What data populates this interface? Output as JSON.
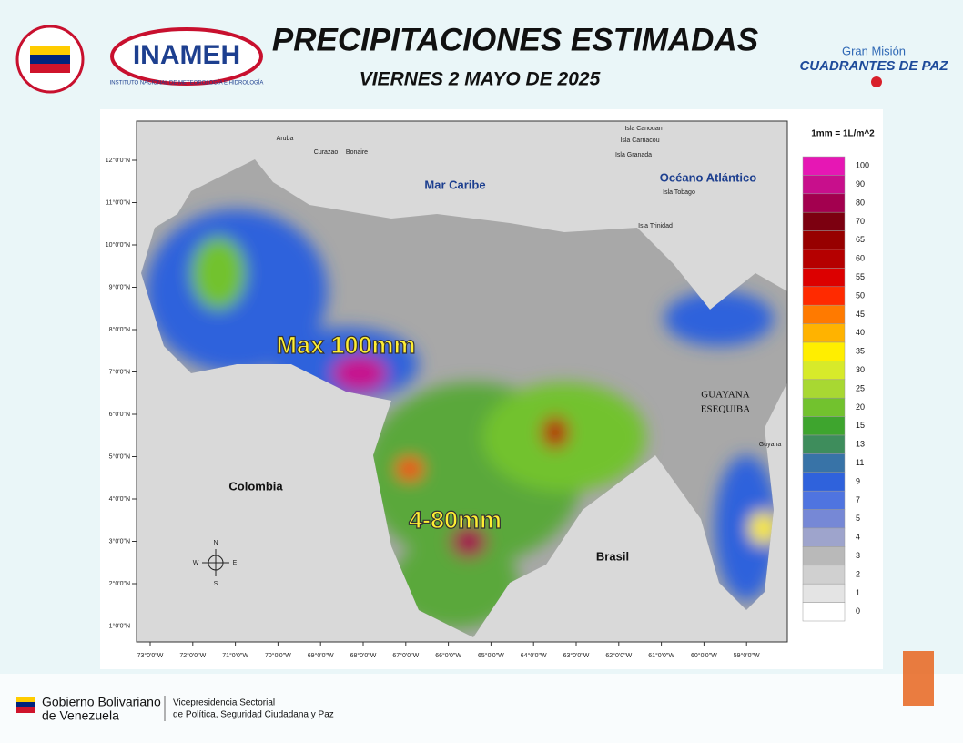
{
  "header": {
    "title": "PRECIPITACIONES ESTIMADAS",
    "subtitle": "VIERNES 2 MAYO DE 2025",
    "logo_left": "INAMEH",
    "logo_left_caption": "INSTITUTO NACIONAL DE METEOROLOGÍA E HIDROLOGÍA",
    "logo_right_top": "Gran Misión",
    "logo_right_main": "CUADRANTES DE PAZ"
  },
  "map": {
    "labels": {
      "sea": "Mar Caribe",
      "ocean": "Océano Atlántico",
      "colombia": "Colombia",
      "brasil": "Brasil",
      "guayana": "GUAYANA",
      "esequiba": "ESEQUIBA",
      "guyana": "Guyana",
      "aruba": "Aruba",
      "curazao": "Curazao",
      "bonaire": "Bonaire",
      "canouan": "Isla Canouan",
      "carriacou": "Isla Carriacou",
      "granada": "Isla Granada",
      "tobago": "Isla Tobago",
      "trinidad": "Isla Trinidad"
    },
    "annotations": [
      "Max 100mm",
      "4-80mm"
    ],
    "compass": {
      "n": "N",
      "s": "S",
      "e": "E",
      "w": "W"
    },
    "lat_labels": [
      "12°0'0\"N",
      "11°0'0\"N",
      "10°0'0\"N",
      "9°0'0\"N",
      "8°0'0\"N",
      "7°0'0\"N",
      "6°0'0\"N",
      "5°0'0\"N",
      "4°0'0\"N",
      "3°0'0\"N",
      "2°0'0\"N",
      "1°0'0\"N"
    ],
    "lon_labels": [
      "73°0'0\"W",
      "72°0'0\"W",
      "71°0'0\"W",
      "70°0'0\"W",
      "69°0'0\"W",
      "68°0'0\"W",
      "67°0'0\"W",
      "66°0'0\"W",
      "65°0'0\"W",
      "64°0'0\"W",
      "63°0'0\"W",
      "62°0'0\"W",
      "61°0'0\"W",
      "60°0'0\"W",
      "59°0'0\"W"
    ]
  },
  "legend": {
    "title": "1mm = 1L/m^2",
    "items": [
      {
        "value": 100,
        "color": "#e617b4"
      },
      {
        "value": 90,
        "color": "#c80f8c"
      },
      {
        "value": 80,
        "color": "#a3004f"
      },
      {
        "value": 70,
        "color": "#7c0010"
      },
      {
        "value": 65,
        "color": "#970000"
      },
      {
        "value": 60,
        "color": "#b50000"
      },
      {
        "value": 55,
        "color": "#dc0000"
      },
      {
        "value": 50,
        "color": "#ff2a00"
      },
      {
        "value": 45,
        "color": "#ff7a00"
      },
      {
        "value": 40,
        "color": "#ffb300"
      },
      {
        "value": 35,
        "color": "#ffee00"
      },
      {
        "value": 30,
        "color": "#d7ea2a"
      },
      {
        "value": 25,
        "color": "#a8d832"
      },
      {
        "value": 20,
        "color": "#72c22e"
      },
      {
        "value": 15,
        "color": "#3ea52e"
      },
      {
        "value": 13,
        "color": "#3e8d5c"
      },
      {
        "value": 11,
        "color": "#3873a7"
      },
      {
        "value": 9,
        "color": "#2f62dc"
      },
      {
        "value": 7,
        "color": "#4f74e0"
      },
      {
        "value": 5,
        "color": "#7688d6"
      },
      {
        "value": 4,
        "color": "#9ea4cc"
      },
      {
        "value": 3,
        "color": "#b9b9b9"
      },
      {
        "value": 2,
        "color": "#d0d0d0"
      },
      {
        "value": 1,
        "color": "#e4e4e4"
      },
      {
        "value": 0,
        "color": "#ffffff"
      }
    ]
  },
  "footer": {
    "gov_line1": "Gobierno Bolivariano",
    "gov_line2": "de Venezuela",
    "vp_line1": "Vicepresidencia Sectorial",
    "vp_line2": "de Política, Seguridad Ciudadana y Paz"
  }
}
